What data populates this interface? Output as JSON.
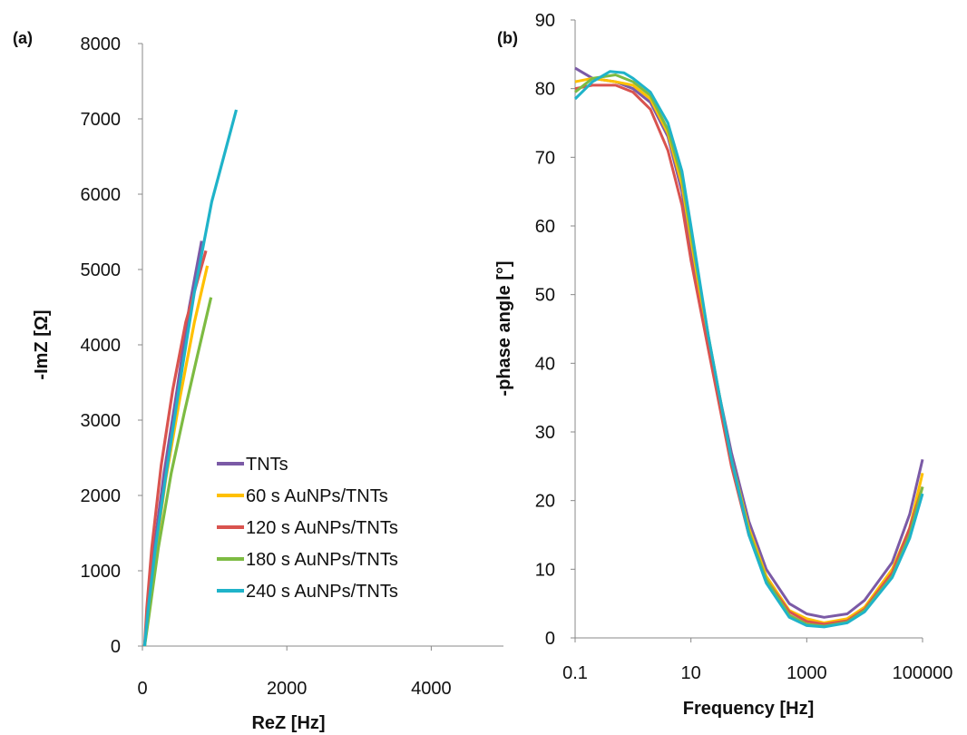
{
  "chart_data": [
    {
      "type": "line",
      "panel_label": "(a)",
      "xlabel": "ReZ [Hz]",
      "ylabel": "-ImZ  [Ω]",
      "xlim": [
        0,
        5000
      ],
      "ylim": [
        0,
        8000
      ],
      "x_ticks": [
        "0",
        "2000",
        "4000"
      ],
      "y_ticks": [
        "0",
        "1000",
        "2000",
        "3000",
        "4000",
        "5000",
        "6000",
        "7000",
        "8000"
      ],
      "grid": false,
      "legend_placement": "lower-right",
      "series": [
        {
          "name": "TNTs",
          "color": "#7b5aa6",
          "points": [
            [
              30,
              0
            ],
            [
              70,
              400
            ],
            [
              150,
              1200
            ],
            [
              300,
              2300
            ],
            [
              480,
              3400
            ],
            [
              650,
              4500
            ],
            [
              820,
              5380
            ]
          ]
        },
        {
          "name": "60 s AuNPs/TNTs",
          "color": "#ffc000",
          "points": [
            [
              30,
              0
            ],
            [
              80,
              400
            ],
            [
              170,
              1150
            ],
            [
              320,
              2200
            ],
            [
              520,
              3300
            ],
            [
              720,
              4300
            ],
            [
              900,
              5050
            ]
          ]
        },
        {
          "name": "120 s AuNPs/TNTs",
          "color": "#d9534f",
          "points": [
            [
              30,
              0
            ],
            [
              60,
              500
            ],
            [
              130,
              1300
            ],
            [
              260,
              2400
            ],
            [
              420,
              3400
            ],
            [
              600,
              4300
            ],
            [
              880,
              5250
            ]
          ]
        },
        {
          "name": "180 s AuNPs/TNTs",
          "color": "#7dbb42",
          "points": [
            [
              30,
              0
            ],
            [
              90,
              400
            ],
            [
              220,
              1300
            ],
            [
              400,
              2300
            ],
            [
              580,
              3100
            ],
            [
              760,
              3850
            ],
            [
              950,
              4630
            ]
          ]
        },
        {
          "name": "240 s AuNPs/TNTs",
          "color": "#1fb3c9",
          "points": [
            [
              30,
              0
            ],
            [
              80,
              500
            ],
            [
              180,
              1300
            ],
            [
              330,
              2300
            ],
            [
              520,
              3500
            ],
            [
              720,
              4700
            ],
            [
              960,
              5900
            ],
            [
              1300,
              7120
            ]
          ]
        }
      ]
    },
    {
      "type": "line",
      "panel_label": "(b)",
      "xlabel": "Frequency [Hz]",
      "ylabel": "-phase angle [°]",
      "xscale": "log",
      "xlim": [
        0.1,
        100000
      ],
      "ylim": [
        0,
        90
      ],
      "x_ticks": [
        "0.1",
        "10",
        "1000",
        "100000"
      ],
      "y_ticks": [
        "0",
        "10",
        "20",
        "30",
        "40",
        "50",
        "60",
        "70",
        "80",
        "90"
      ],
      "grid": false,
      "series": [
        {
          "color": "#7b5aa6",
          "points": [
            [
              0.1,
              83
            ],
            [
              0.2,
              81.5
            ],
            [
              0.5,
              81
            ],
            [
              1,
              80
            ],
            [
              2,
              78
            ],
            [
              4,
              73
            ],
            [
              7,
              65
            ],
            [
              10,
              57
            ],
            [
              20,
              43
            ],
            [
              50,
              27
            ],
            [
              100,
              17
            ],
            [
              200,
              10
            ],
            [
              500,
              5
            ],
            [
              1000,
              3.5
            ],
            [
              2000,
              3
            ],
            [
              5000,
              3.5
            ],
            [
              10000,
              5.5
            ],
            [
              30000,
              11
            ],
            [
              60000,
              18
            ],
            [
              100000,
              26
            ]
          ]
        },
        {
          "color": "#ffc000",
          "points": [
            [
              0.1,
              81
            ],
            [
              0.2,
              81.5
            ],
            [
              0.5,
              81
            ],
            [
              1,
              80.5
            ],
            [
              2,
              78.5
            ],
            [
              4,
              73.5
            ],
            [
              7,
              66
            ],
            [
              10,
              58
            ],
            [
              20,
              43
            ],
            [
              50,
              26
            ],
            [
              100,
              16
            ],
            [
              200,
              9
            ],
            [
              500,
              4
            ],
            [
              1000,
              2.8
            ],
            [
              2000,
              2.2
            ],
            [
              5000,
              2.8
            ],
            [
              10000,
              4.5
            ],
            [
              30000,
              10
            ],
            [
              60000,
              16
            ],
            [
              100000,
              24
            ]
          ]
        },
        {
          "color": "#d9534f",
          "points": [
            [
              0.1,
              80
            ],
            [
              0.2,
              80.5
            ],
            [
              0.5,
              80.5
            ],
            [
              1,
              79.5
            ],
            [
              2,
              77
            ],
            [
              4,
              71
            ],
            [
              7,
              63
            ],
            [
              10,
              55
            ],
            [
              20,
              42
            ],
            [
              50,
              25
            ],
            [
              100,
              15
            ],
            [
              200,
              8.5
            ],
            [
              500,
              3.8
            ],
            [
              1000,
              2.4
            ],
            [
              2000,
              2
            ],
            [
              5000,
              2.5
            ],
            [
              10000,
              4.2
            ],
            [
              30000,
              9.5
            ],
            [
              60000,
              16
            ],
            [
              100000,
              22
            ]
          ]
        },
        {
          "color": "#7dbb42",
          "points": [
            [
              0.1,
              79.5
            ],
            [
              0.2,
              81.5
            ],
            [
              0.5,
              82
            ],
            [
              1,
              81
            ],
            [
              2,
              79
            ],
            [
              4,
              74
            ],
            [
              7,
              67
            ],
            [
              10,
              59
            ],
            [
              20,
              44
            ],
            [
              50,
              26
            ],
            [
              100,
              15.5
            ],
            [
              200,
              8.5
            ],
            [
              500,
              3.3
            ],
            [
              1000,
              2
            ],
            [
              2000,
              1.7
            ],
            [
              5000,
              2.3
            ],
            [
              10000,
              4
            ],
            [
              30000,
              9
            ],
            [
              60000,
              15
            ],
            [
              100000,
              22
            ]
          ]
        },
        {
          "color": "#1fb3c9",
          "points": [
            [
              0.1,
              78.5
            ],
            [
              0.2,
              81
            ],
            [
              0.4,
              82.5
            ],
            [
              0.7,
              82.3
            ],
            [
              1,
              81.5
            ],
            [
              2,
              79.5
            ],
            [
              4,
              75
            ],
            [
              7,
              68
            ],
            [
              10,
              60
            ],
            [
              20,
              44
            ],
            [
              50,
              26
            ],
            [
              100,
              15
            ],
            [
              200,
              8
            ],
            [
              500,
              3
            ],
            [
              1000,
              1.8
            ],
            [
              2000,
              1.6
            ],
            [
              5000,
              2.2
            ],
            [
              10000,
              3.8
            ],
            [
              30000,
              8.8
            ],
            [
              60000,
              14.5
            ],
            [
              100000,
              21
            ]
          ]
        }
      ]
    }
  ]
}
